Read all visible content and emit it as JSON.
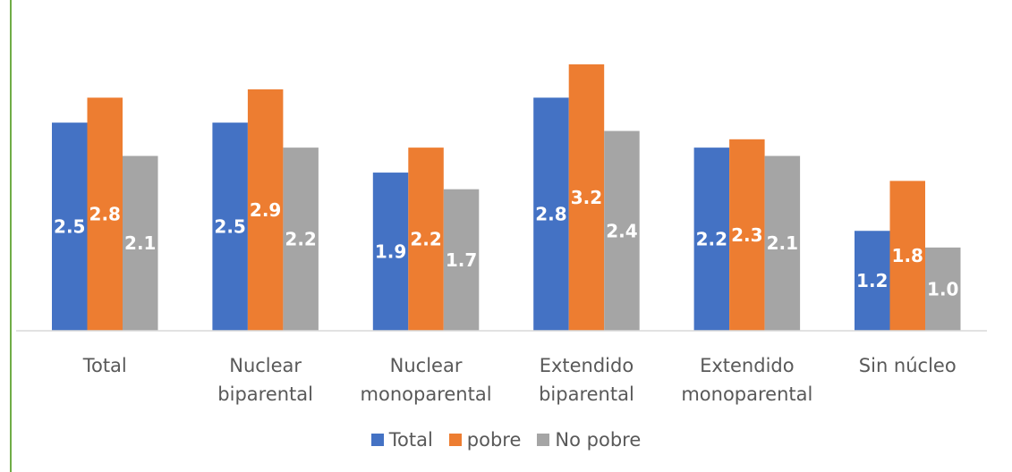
{
  "chart_data": {
    "type": "bar",
    "categories": [
      [
        "Total"
      ],
      [
        "Nuclear",
        "biparental"
      ],
      [
        "Nuclear",
        "monoparental"
      ],
      [
        "Extendido",
        "biparental"
      ],
      [
        "Extendido",
        "monoparental"
      ],
      [
        "Sin núcleo"
      ]
    ],
    "series": [
      {
        "name": "Total",
        "color": "#4472c4",
        "values": [
          2.5,
          2.5,
          1.9,
          2.8,
          2.2,
          1.2
        ],
        "labels": [
          "2.5",
          "2.5",
          "1.9",
          "2.8",
          "2.2",
          "1.2"
        ]
      },
      {
        "name": "pobre",
        "color": "#ed7d31",
        "values": [
          2.8,
          2.9,
          2.2,
          3.2,
          2.3,
          1.8
        ],
        "labels": [
          "2.8",
          "2.9",
          "2.2",
          "3.2",
          "2.3",
          "1.8"
        ]
      },
      {
        "name": "No pobre",
        "color": "#a5a5a5",
        "values": [
          2.1,
          2.2,
          1.7,
          2.4,
          2.1,
          1.0
        ],
        "labels": [
          "2.1",
          "2.2",
          "1.7",
          "2.4",
          "2.1",
          "1.0"
        ]
      }
    ],
    "title": "",
    "xlabel": "",
    "ylabel": "",
    "ylim": [
      0,
      3.2
    ],
    "grid": false,
    "legend_position": "bottom",
    "data_labels": "inside-center"
  }
}
